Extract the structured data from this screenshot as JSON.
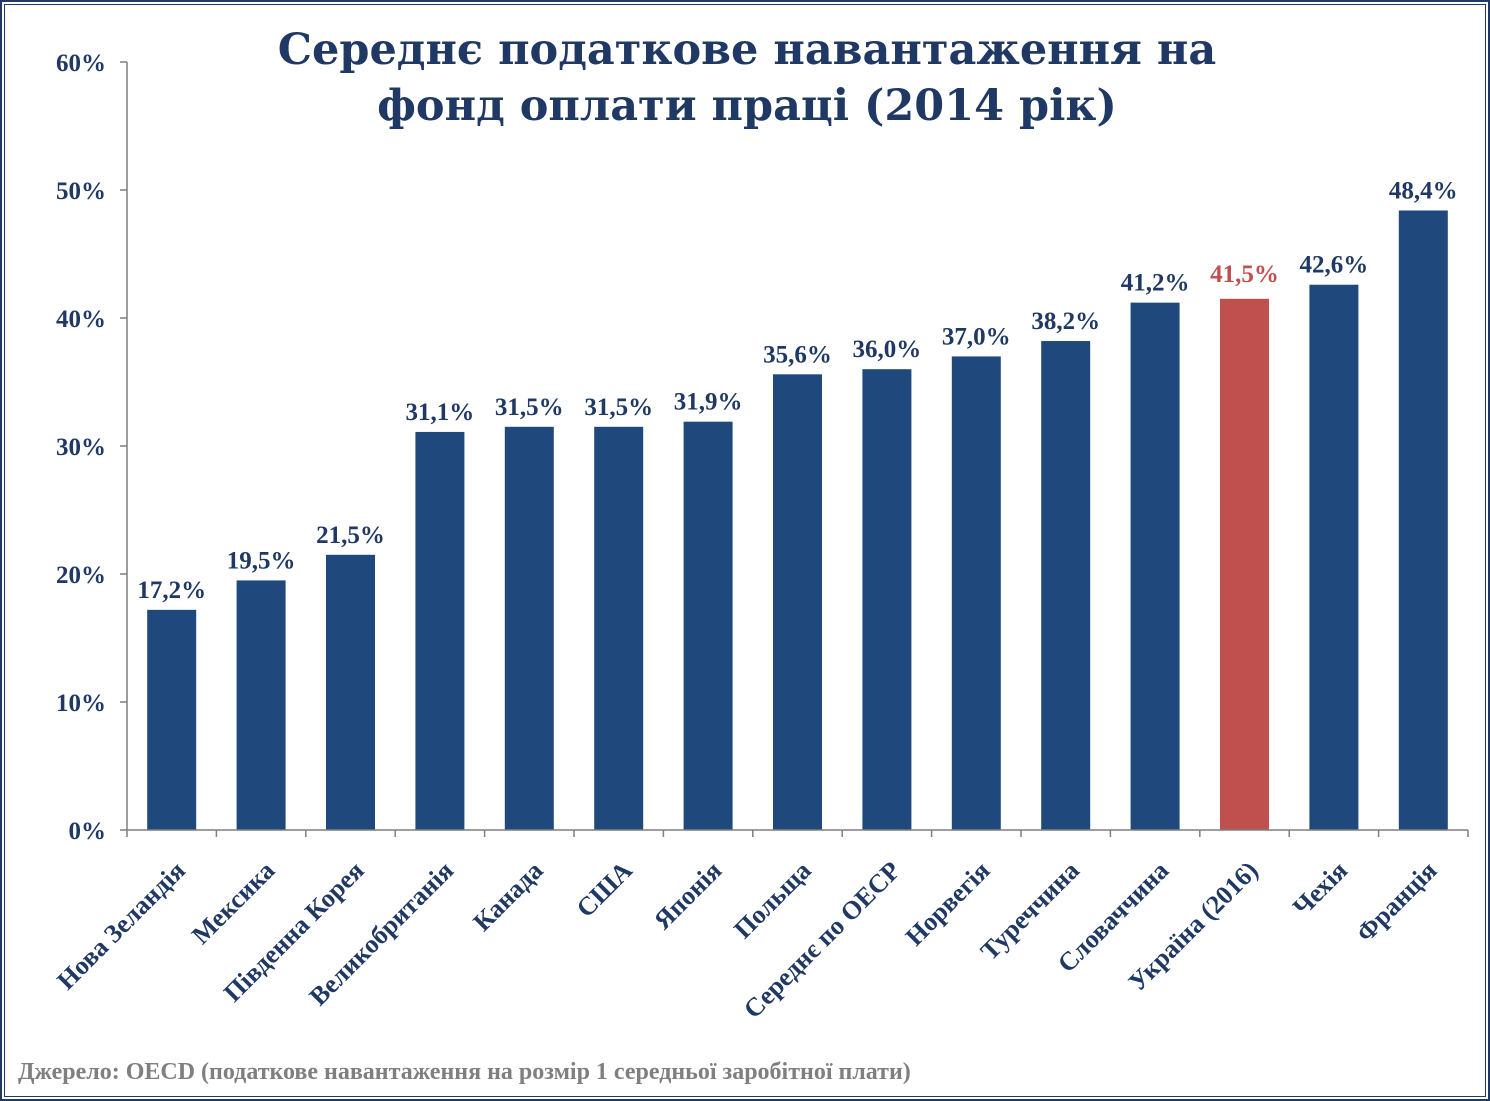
{
  "chart_data": {
    "type": "bar",
    "title_lines": [
      "Середнє податкове навантаження на",
      "фонд оплати праці (2014 рік)"
    ],
    "categories": [
      "Нова Зеландія",
      "Мексика",
      "Південна Корея",
      "Великобританія",
      "Канада",
      "США",
      "Японія",
      "Польща",
      "Середнє по ОЕСР",
      "Норвегія",
      "Туреччина",
      "Словаччина",
      "Україна (2016)",
      "Чехія",
      "Франція"
    ],
    "values": [
      17.2,
      19.5,
      21.5,
      31.1,
      31.5,
      31.5,
      31.9,
      35.6,
      36.0,
      37.0,
      38.2,
      41.2,
      41.5,
      42.6,
      48.4
    ],
    "data_labels": [
      "17,2%",
      "19,5%",
      "21,5%",
      "31,1%",
      "31,5%",
      "31,5%",
      "31,9%",
      "35,6%",
      "36,0%",
      "37,0%",
      "38,2%",
      "41,2%",
      "41,5%",
      "42,6%",
      "48,4%"
    ],
    "highlight_index": 12,
    "ylim": [
      0,
      60
    ],
    "yticks": [
      "0%",
      "10%",
      "20%",
      "30%",
      "40%",
      "50%",
      "60%"
    ],
    "grid": false,
    "legend": "none",
    "colors": {
      "bar": "#1f497d",
      "highlight": "#c0504d",
      "text": "#1f3864"
    }
  },
  "source_note": "Джерело: OECD (податкове навантаження на розмір 1 середньої заробітної плати)"
}
